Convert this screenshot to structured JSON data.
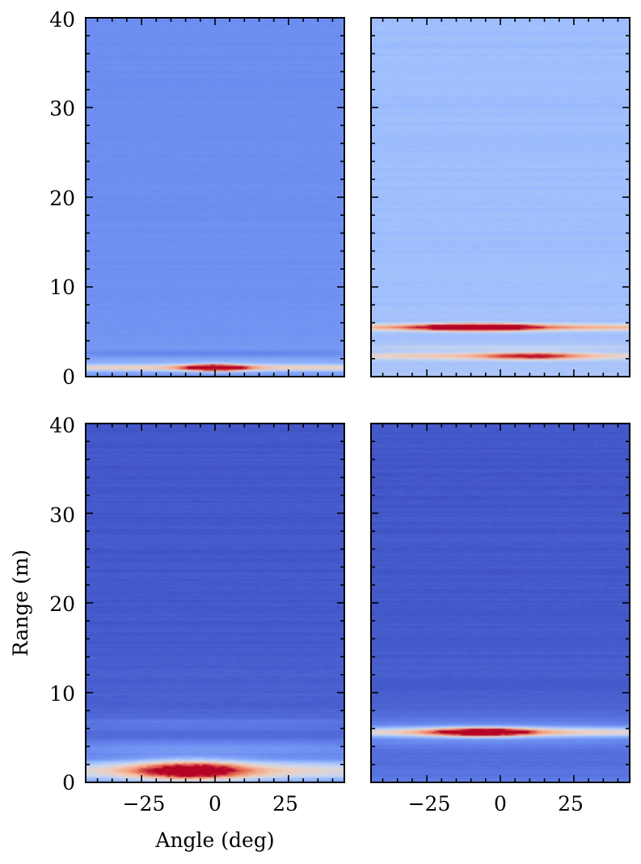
{
  "chart_data": {
    "type": "heatmap",
    "layout": "2x2 grid",
    "xlabel": "Angle (deg)",
    "ylabel": "Range (m)",
    "xlim": [
      -44,
      44
    ],
    "ylim": [
      0,
      40
    ],
    "x_ticks": [
      -25,
      0,
      25
    ],
    "y_ticks": [
      0,
      10,
      20,
      30,
      40
    ],
    "tick_labels": {
      "x": [
        "−25",
        "0",
        "25"
      ],
      "y": [
        "0",
        "10",
        "20",
        "30",
        "40"
      ]
    },
    "colormap": "coolwarm",
    "colormap_stops": [
      "#3b4cc0",
      "#6788ee",
      "#9abbff",
      "#c9d7f0",
      "#edd1c2",
      "#f7a889",
      "#e26952",
      "#b40426"
    ],
    "panels": [
      {
        "position": "top-left",
        "background": 0.16,
        "near_range_falloff": 0.04,
        "bands": [
          {
            "range": 1.0,
            "width": 0.35,
            "intensity": 0.42,
            "angular_spread": 60,
            "peak_angle": 0,
            "peak_intensity": 0.98,
            "peak_width": 10
          },
          {
            "range": 2.6,
            "width": 0.35,
            "intensity": -0.05,
            "angular_spread": 40,
            "peak_angle": 0,
            "peak_intensity": 0.0,
            "peak_width": 10
          },
          {
            "range": 1.8,
            "width": 0.4,
            "intensity": 0.05,
            "angular_spread": 50,
            "peak_angle": 0,
            "peak_intensity": 0.0,
            "peak_width": 10
          }
        ],
        "ripple": 0.015
      },
      {
        "position": "top-right",
        "background": 0.3,
        "near_range_falloff": 0.04,
        "bands": [
          {
            "range": 5.5,
            "width": 0.35,
            "intensity": 0.4,
            "angular_spread": 60,
            "peak_angle": -8,
            "peak_intensity": 0.99,
            "peak_width": 18
          },
          {
            "range": 2.3,
            "width": 0.35,
            "intensity": 0.3,
            "angular_spread": 45,
            "peak_angle": 10,
            "peak_intensity": 0.48,
            "peak_width": 15
          },
          {
            "range": 3.2,
            "width": 0.3,
            "intensity": 0.1,
            "angular_spread": 40,
            "peak_angle": 0,
            "peak_intensity": 0.0,
            "peak_width": 10
          }
        ],
        "ripple": 0.03
      },
      {
        "position": "bottom-left",
        "background": 0.03,
        "near_range_falloff": 0.1,
        "bands": [
          {
            "range": 1.3,
            "width": 1.0,
            "intensity": 0.45,
            "angular_spread": 55,
            "peak_angle": -8,
            "peak_intensity": 0.78,
            "peak_width": 18
          },
          {
            "range": 3.8,
            "width": 0.8,
            "intensity": 0.1,
            "angular_spread": 45,
            "peak_angle": 0,
            "peak_intensity": 0.0,
            "peak_width": 10
          },
          {
            "range": 6.5,
            "width": 0.8,
            "intensity": 0.05,
            "angular_spread": 40,
            "peak_angle": 0,
            "peak_intensity": 0.0,
            "peak_width": 10
          }
        ],
        "ripple": 0.025
      },
      {
        "position": "bottom-right",
        "background": 0.03,
        "near_range_falloff": 0.08,
        "bands": [
          {
            "range": 5.6,
            "width": 0.45,
            "intensity": 0.42,
            "angular_spread": 60,
            "peak_angle": -6,
            "peak_intensity": 0.92,
            "peak_width": 16
          },
          {
            "range": 5.6,
            "width": 1.6,
            "intensity": 0.12,
            "angular_spread": 50,
            "peak_angle": 0,
            "peak_intensity": 0.0,
            "peak_width": 10
          }
        ],
        "ripple": 0.025
      }
    ]
  }
}
